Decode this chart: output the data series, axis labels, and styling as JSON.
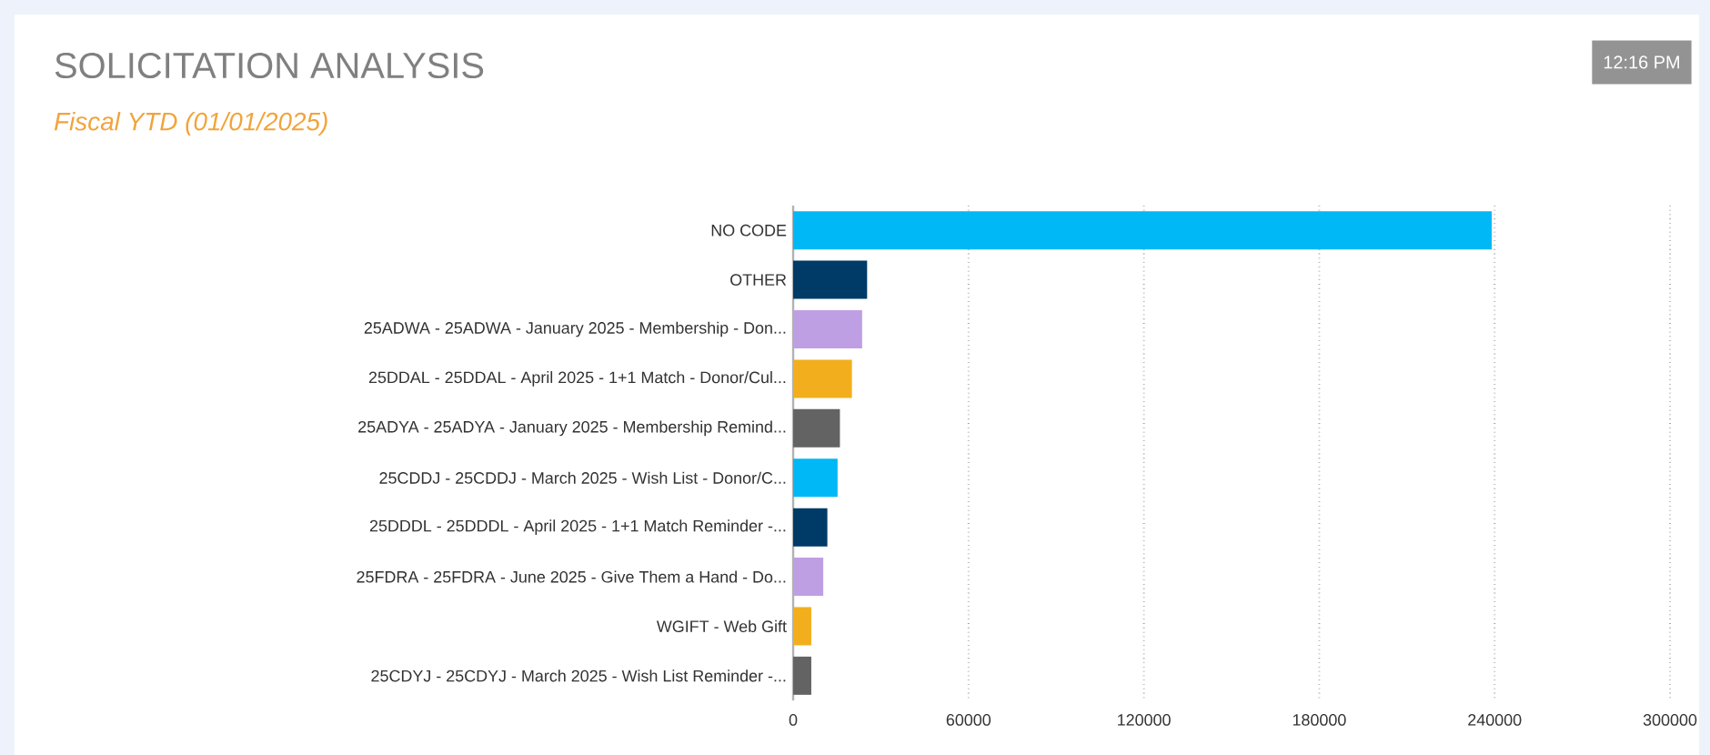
{
  "chart_data": {
    "type": "bar",
    "orientation": "horizontal",
    "title": "SOLICITATION ANALYSIS",
    "subtitle": "Fiscal YTD (01/01/2025)",
    "annotations": [
      "12:16 PM"
    ],
    "categories": [
      "NO CODE",
      "OTHER",
      "25ADWA - 25ADWA - January 2025 - Membership - Don...",
      "25DDAL - 25DDAL - April 2025 - 1+1 Match - Donor/Cul...",
      "25ADYA - 25ADYA - January 2025 - Membership Remind...",
      "25CDDJ - 25CDDJ - March 2025 - Wish List - Donor/C...",
      "25DDDL - 25DDDL - April 2025 - 1+1 Match Reminder -...",
      "25FDRA - 25FDRA - June 2025 - Give Them a Hand - Do...",
      "WGIFT - Web Gift",
      "25CDYJ - 25CDYJ - March 2025 - Wish List Reminder -..."
    ],
    "values": [
      239000,
      25300,
      23600,
      20100,
      16000,
      15200,
      11700,
      10300,
      6200,
      6200
    ],
    "colors": [
      "#00b8f5",
      "#003a66",
      "#bf9fe3",
      "#f2ae1c",
      "#636363",
      "#00b8f5",
      "#003a66",
      "#bf9fe3",
      "#f2ae1c",
      "#636363"
    ],
    "xlim": [
      0,
      300000
    ],
    "xticks": [
      0,
      60000,
      120000,
      180000,
      240000,
      300000
    ],
    "grid": "x"
  }
}
